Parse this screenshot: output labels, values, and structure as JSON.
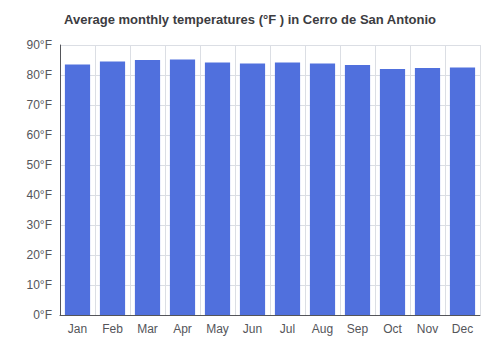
{
  "chart_data": {
    "type": "bar",
    "title": "Average monthly temperatures (°F ) in Cerro de San Antonio",
    "categories": [
      "Jan",
      "Feb",
      "Mar",
      "Apr",
      "May",
      "Jun",
      "Jul",
      "Aug",
      "Sep",
      "Oct",
      "Nov",
      "Dec"
    ],
    "values": [
      83.5,
      84.5,
      85.0,
      85.2,
      84.2,
      83.8,
      84.2,
      83.8,
      83.3,
      82.0,
      82.3,
      82.5
    ],
    "ylim": [
      0,
      90
    ],
    "yticks": [
      {
        "value": 0,
        "label": "0°F"
      },
      {
        "value": 10,
        "label": "10°F"
      },
      {
        "value": 20,
        "label": "20°F"
      },
      {
        "value": 30,
        "label": "30°F"
      },
      {
        "value": 40,
        "label": "40°F"
      },
      {
        "value": 50,
        "label": "50°F"
      },
      {
        "value": 60,
        "label": "60°F"
      },
      {
        "value": 70,
        "label": "70°F"
      },
      {
        "value": 80,
        "label": "80°F"
      },
      {
        "value": 90,
        "label": "90°F"
      }
    ],
    "grid": true
  }
}
